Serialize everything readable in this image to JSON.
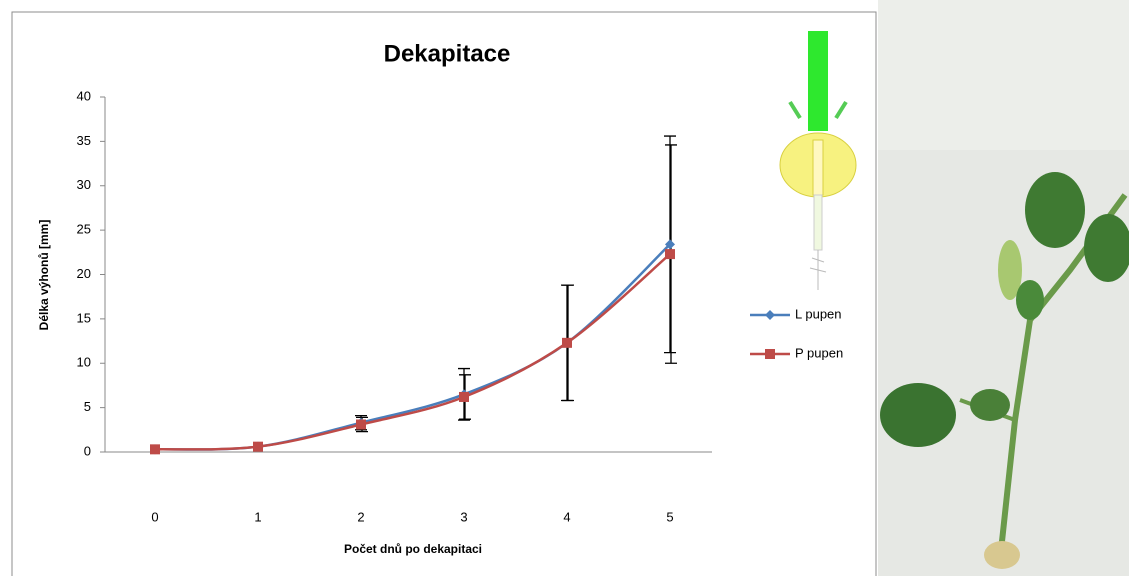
{
  "chart_data": {
    "type": "line",
    "title": "Dekapitace",
    "y_label": "Délka výhonů [mm]",
    "x_label": "Počet dnů po dekapitaci",
    "categories": [
      "0",
      "1",
      "2",
      "3",
      "4",
      "5"
    ],
    "series": [
      {
        "name": "L pupen",
        "color": "#4a7ebb",
        "marker": "diamond",
        "values": [
          0.3,
          0.6,
          3.3,
          6.5,
          12.3,
          23.4
        ],
        "errors": [
          0,
          0,
          0.8,
          2.9,
          6.5,
          12.2
        ]
      },
      {
        "name": "P pupen",
        "color": "#be4b48",
        "marker": "square",
        "values": [
          0.3,
          0.6,
          3.1,
          6.2,
          12.3,
          22.3
        ],
        "errors": [
          0,
          0,
          0.8,
          2.5,
          6.5,
          12.3
        ]
      }
    ],
    "ylim": [
      0,
      40
    ],
    "yticks": [
      0,
      5,
      10,
      15,
      20,
      25,
      30,
      35,
      40
    ],
    "grid": false,
    "legend": "right"
  }
}
